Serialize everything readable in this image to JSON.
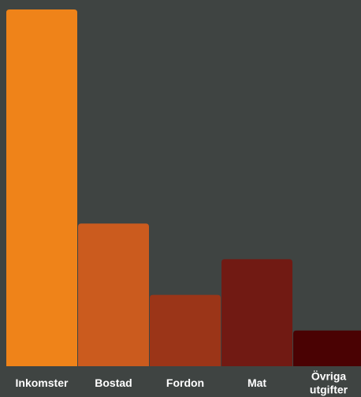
{
  "chart_data": {
    "type": "bar",
    "title": "",
    "xlabel": "",
    "ylabel": "",
    "ylim": [
      0,
      100
    ],
    "grid": false,
    "legend": "none",
    "categories": [
      {
        "id": "inkomster",
        "label_lines": [
          "Inkomster"
        ],
        "color": "#ef8319"
      },
      {
        "id": "bostad",
        "label_lines": [
          "Bostad"
        ],
        "color": "#cb5b1e"
      },
      {
        "id": "fordon",
        "label_lines": [
          "Fordon"
        ],
        "color": "#9b3518"
      },
      {
        "id": "mat",
        "label_lines": [
          "Mat"
        ],
        "color": "#711a13"
      },
      {
        "id": "ovriga-utgifter",
        "label_lines": [
          "Övriga",
          "utgifter"
        ],
        "color": "#4a0203"
      }
    ],
    "values": [
      100,
      40,
      20,
      30,
      10
    ]
  },
  "colors": {
    "background": "#3f4442",
    "label_text": "#ffffff"
  }
}
